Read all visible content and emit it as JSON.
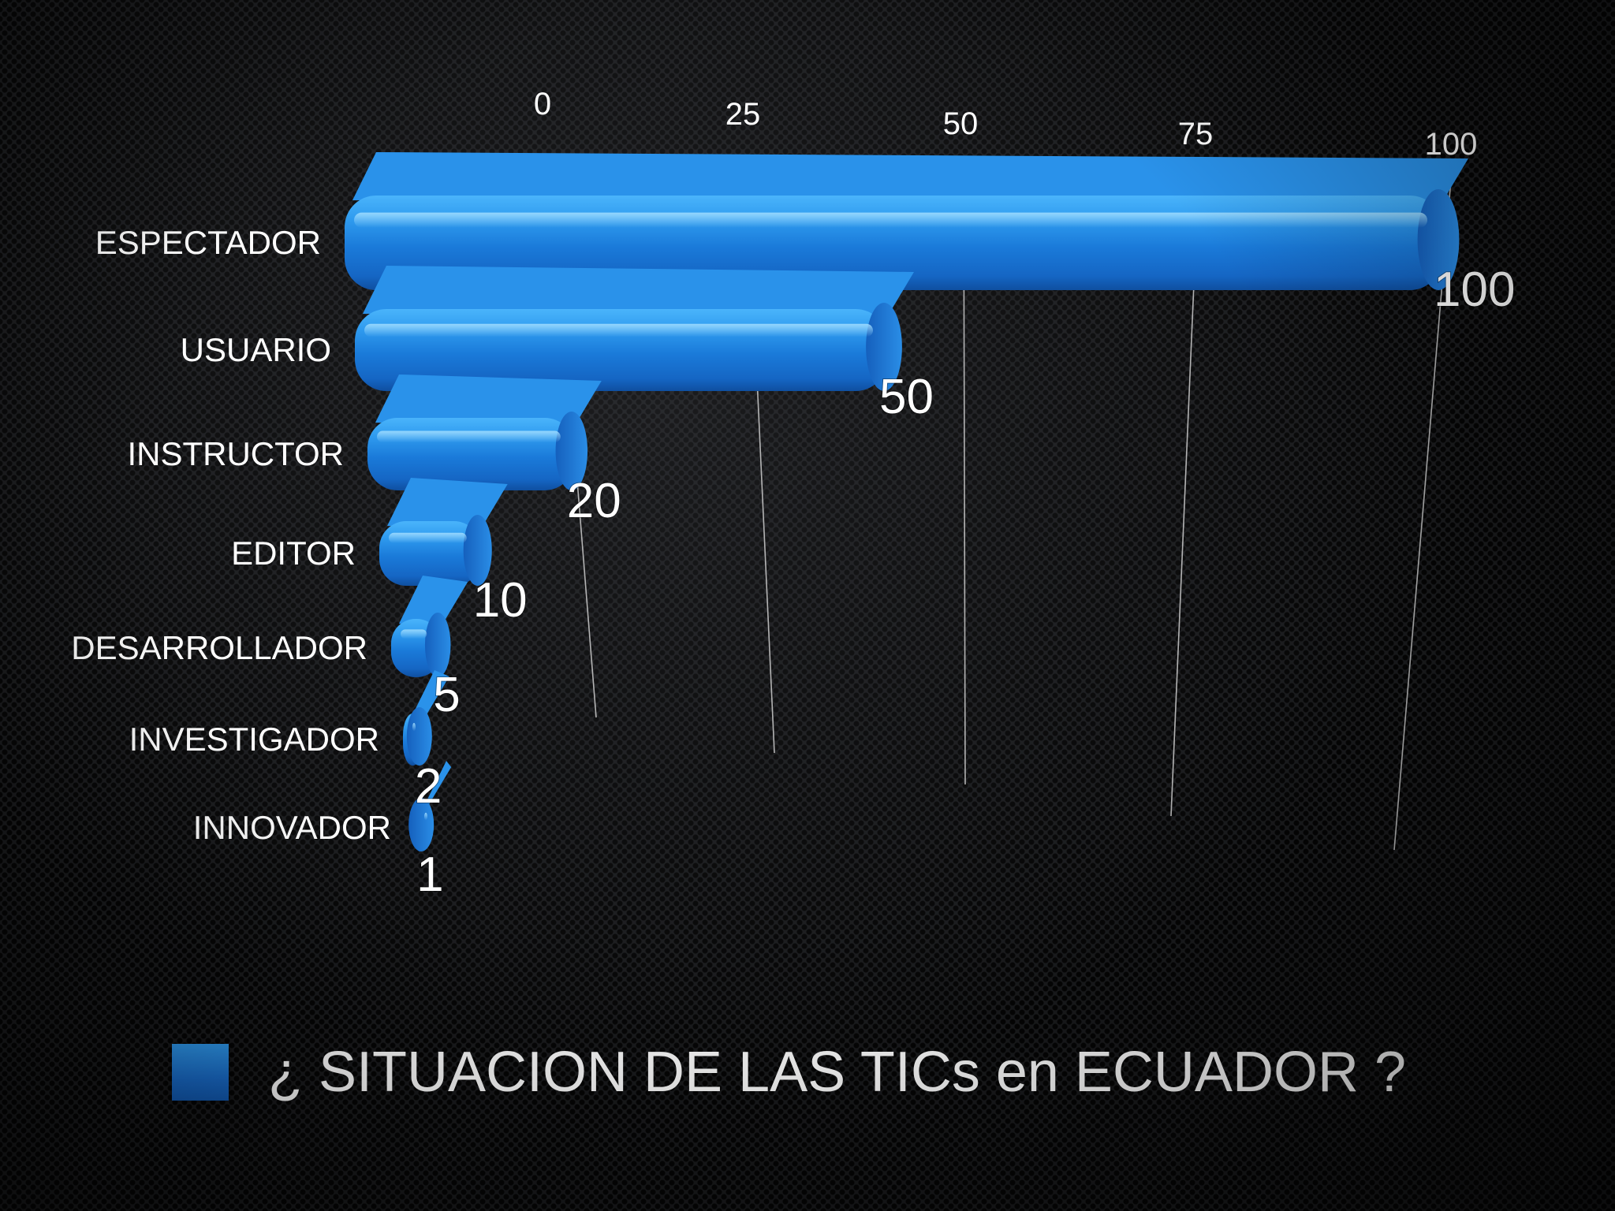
{
  "chart_data": {
    "type": "bar",
    "orientation": "horizontal",
    "style": "3d-perspective",
    "categories": [
      "ESPECTADOR",
      "USUARIO",
      "INSTRUCTOR",
      "EDITOR",
      "DESARROLLADOR",
      "INVESTIGADOR",
      "INNOVADOR"
    ],
    "series": [
      {
        "name": "¿ SITUACION DE LAS TICs en ECUADOR ?",
        "values": [
          100,
          50,
          20,
          10,
          5,
          2,
          1
        ]
      }
    ],
    "value_labels": [
      "100",
      "50",
      "20",
      "10",
      "5",
      "2",
      "1"
    ],
    "x_ticks": [
      "0",
      "25",
      "50",
      "75",
      "100"
    ],
    "xlim": [
      0,
      100
    ],
    "grid": true,
    "legend_position": "bottom",
    "colors": {
      "bar": "#1f86e0",
      "bar_highlight": "#5cc0ff",
      "bar_shadow": "#0f4fa0",
      "text": "#ffffff",
      "grid": "#cfcfcf"
    }
  }
}
